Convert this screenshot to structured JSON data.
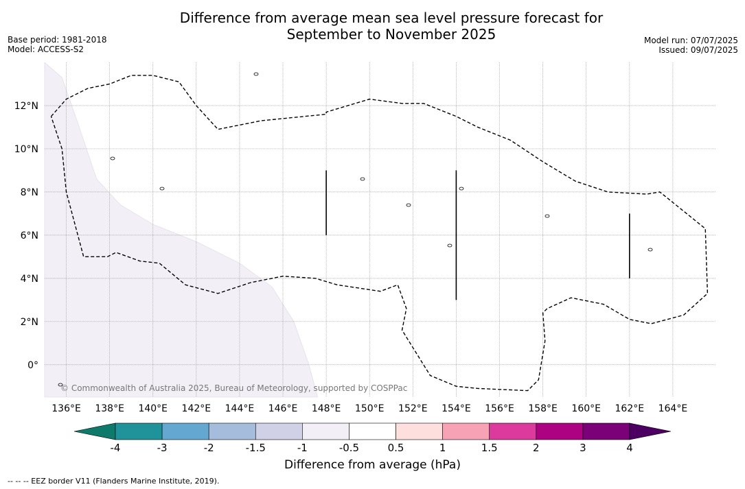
{
  "title_line1": "Difference from average mean sea level pressure forecast for",
  "title_line2": "September to November 2025",
  "base_period": "Base period: 1981-2018",
  "model": "Model: ACCESS-S2",
  "model_run": "Model run: 07/07/2025",
  "issued": "Issued: 09/07/2025",
  "copyright": "© Commonwealth of Australia 2025, Bureau of Meteorology, supported by COSPPac",
  "footnote": "-- -- -- EEZ border V11 (Flanders Marine Institute, 2019).",
  "colorbar": {
    "title": "Difference from average (hPa)",
    "bins": [
      {
        "from": null,
        "to": -4,
        "color": "#0e7a6c"
      },
      {
        "from": -4,
        "to": -3,
        "color": "#20929a"
      },
      {
        "from": -3,
        "to": -2,
        "color": "#64a8d2"
      },
      {
        "from": -2,
        "to": -1.5,
        "color": "#a6bcdc"
      },
      {
        "from": -1.5,
        "to": -1,
        "color": "#d0d0e6"
      },
      {
        "from": -1,
        "to": -0.5,
        "color": "#f3eff6"
      },
      {
        "from": -0.5,
        "to": 0.5,
        "color": "#ffffff"
      },
      {
        "from": 0.5,
        "to": 1,
        "color": "#fde0dd"
      },
      {
        "from": 1,
        "to": 1.5,
        "color": "#f8a3b5"
      },
      {
        "from": 1.5,
        "to": 2,
        "color": "#dc3a9c"
      },
      {
        "from": 2,
        "to": 3,
        "color": "#ad0382"
      },
      {
        "from": 3,
        "to": 4,
        "color": "#7b0178"
      },
      {
        "from": 4,
        "to": null,
        "color": "#4b0062"
      }
    ],
    "tick_labels": [
      "-4",
      "-3",
      "-2",
      "-1.5",
      "-1",
      "-0.5",
      "0.5",
      "1",
      "1.5",
      "2",
      "3",
      "4"
    ]
  },
  "map": {
    "lon_range": [
      135,
      166
    ],
    "lat_range": [
      -1.5,
      14
    ],
    "lon_ticks": [
      136,
      138,
      140,
      142,
      144,
      146,
      148,
      150,
      152,
      154,
      156,
      158,
      160,
      162,
      164
    ],
    "lat_ticks": [
      0,
      2,
      4,
      6,
      8,
      10,
      12
    ],
    "lon_tick_labels": [
      "136°E",
      "138°E",
      "140°E",
      "142°E",
      "144°E",
      "146°E",
      "148°E",
      "150°E",
      "152°E",
      "154°E",
      "156°E",
      "158°E",
      "160°E",
      "162°E",
      "164°E"
    ],
    "lat_tick_labels": [
      "0°",
      "2°N",
      "4°N",
      "6°N",
      "8°N",
      "10°N",
      "12°N"
    ],
    "shaded_region_color": "#f3eff6",
    "shaded_region": [
      [
        135,
        14
      ],
      [
        135.8,
        13.3
      ],
      [
        136.6,
        11
      ],
      [
        137.4,
        8.6
      ],
      [
        138.5,
        7.4
      ],
      [
        140,
        6.5
      ],
      [
        142,
        5.7
      ],
      [
        144,
        4.7
      ],
      [
        145.5,
        3.6
      ],
      [
        146.5,
        2
      ],
      [
        147.2,
        0
      ],
      [
        147.6,
        -1.5
      ],
      [
        135,
        -1.5
      ]
    ],
    "eez_border": [
      [
        135.3,
        11.5
      ],
      [
        136,
        12.3
      ],
      [
        137,
        12.8
      ],
      [
        138,
        13
      ],
      [
        139,
        13.4
      ],
      [
        140,
        13.4
      ],
      [
        141.2,
        13.1
      ],
      [
        142,
        12
      ],
      [
        143,
        10.9
      ],
      [
        145,
        11.3
      ],
      [
        148,
        11.6
      ],
      [
        148,
        11.7
      ],
      [
        149,
        12
      ],
      [
        150,
        12.3
      ],
      [
        151.5,
        12.1
      ],
      [
        152.5,
        12.1
      ],
      [
        154,
        11.5
      ],
      [
        155,
        11
      ],
      [
        156.5,
        10.4
      ],
      [
        158,
        9.4
      ],
      [
        159.5,
        8.5
      ],
      [
        161,
        8.0
      ],
      [
        162.8,
        7.9
      ],
      [
        163.4,
        8
      ],
      [
        165.5,
        6.3
      ],
      [
        165.6,
        3.3
      ],
      [
        164.5,
        2.3
      ],
      [
        163,
        1.9
      ],
      [
        162,
        2.1
      ],
      [
        160.8,
        2.8
      ],
      [
        159.3,
        3.1
      ],
      [
        158.2,
        2.6
      ],
      [
        158,
        2.4
      ],
      [
        158.1,
        1.1
      ],
      [
        157.8,
        -0.7
      ],
      [
        157.3,
        -1.2
      ],
      [
        155,
        -1.1
      ],
      [
        154,
        -1
      ],
      [
        152.8,
        -0.5
      ],
      [
        151.5,
        1.6
      ],
      [
        151.7,
        2.6
      ],
      [
        151.3,
        3.7
      ],
      [
        150.5,
        3.4
      ],
      [
        148.5,
        3.7
      ],
      [
        147.5,
        4.0
      ],
      [
        146,
        4.1
      ],
      [
        144.5,
        3.8
      ],
      [
        143,
        3.3
      ],
      [
        141.5,
        3.7
      ],
      [
        140.3,
        4.7
      ],
      [
        139.4,
        4.8
      ],
      [
        138.3,
        5.2
      ],
      [
        137.9,
        5
      ],
      [
        136.8,
        5.0
      ],
      [
        136,
        8
      ],
      [
        135.8,
        10
      ],
      [
        135.3,
        11.5
      ]
    ],
    "vertical_lines": [
      {
        "lon": 148,
        "lat_from": 6,
        "lat_to": 9
      },
      {
        "lon": 154,
        "lat_from": 3,
        "lat_to": 9
      },
      {
        "lon": 162,
        "lat_from": 4,
        "lat_to": 7
      }
    ]
  }
}
